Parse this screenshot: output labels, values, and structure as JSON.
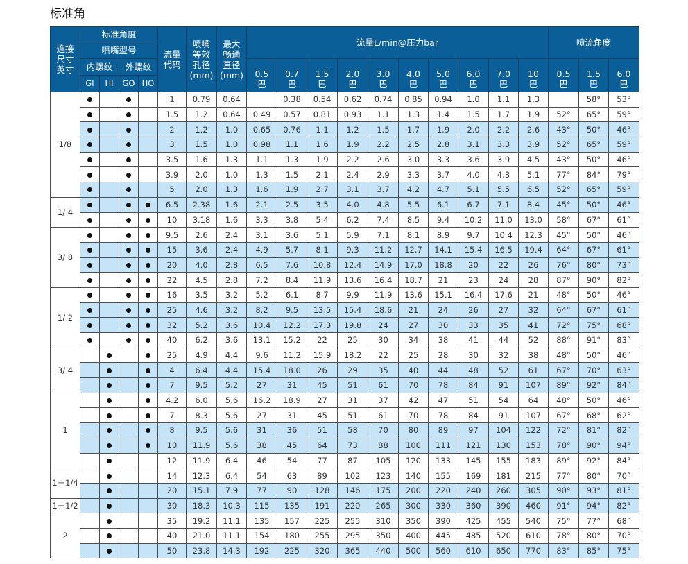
{
  "title": "标准角",
  "header": {
    "connection": [
      "连接",
      "尺寸",
      "英寸"
    ],
    "standard_angle": "标准角度",
    "nozzle_type": "喷嘴型号",
    "female_thread": "内螺纹",
    "male_thread": "外螺纹",
    "types": [
      "GI",
      "HI",
      "GO",
      "HO"
    ],
    "flow_code": [
      "流量",
      "代码"
    ],
    "orifice": [
      "喷嘴",
      "等效",
      "孔径",
      "(mm)"
    ],
    "passage": [
      "最大",
      "畅通",
      "直径",
      "(mm)"
    ],
    "flow_title": "流量L/min@压力bar",
    "flow_pressures": [
      "0.5",
      "0.7",
      "1.5",
      "2.0",
      "3.0",
      "4.0",
      "5.0",
      "6.0",
      "7.0",
      "10"
    ],
    "angle_title": "喷流角度",
    "angle_pressures": [
      "0.5",
      "1.5",
      "6.0"
    ],
    "unit": "巴"
  },
  "colors": {
    "header_bg": "#0b5f98",
    "highlight_row": "#c6e4f8"
  },
  "groups": [
    {
      "size": "1/8",
      "rows": [
        {
          "marks": [
            1,
            0,
            1,
            0
          ],
          "hl": 0,
          "code": "1",
          "orifice": "0.79",
          "passage": "0.64",
          "flows": [
            "",
            "0.38",
            "0.54",
            "0.62",
            "0.74",
            "0.85",
            "0.94",
            "1.0",
            "1.1",
            "1.3"
          ],
          "angles": [
            "",
            "58°",
            "53°"
          ]
        },
        {
          "marks": [
            1,
            0,
            1,
            0
          ],
          "hl": 0,
          "code": "1.5",
          "orifice": "1.2",
          "passage": "0.64",
          "flows": [
            "0.49",
            "0.57",
            "0.81",
            "0.93",
            "1.1",
            "1.3",
            "1.4",
            "1.5",
            "1.7",
            "1.9"
          ],
          "angles": [
            "52°",
            "65°",
            "59°"
          ]
        },
        {
          "marks": [
            1,
            0,
            1,
            0
          ],
          "hl": 1,
          "code": "2",
          "orifice": "1.2",
          "passage": "1.0",
          "flows": [
            "0.65",
            "0.76",
            "1.1",
            "1.2",
            "1.5",
            "1.7",
            "1.9",
            "2.0",
            "2.2",
            "2.6"
          ],
          "angles": [
            "43°",
            "50°",
            "46°"
          ]
        },
        {
          "marks": [
            1,
            0,
            1,
            0
          ],
          "hl": 1,
          "code": "3",
          "orifice": "1.5",
          "passage": "1.0",
          "flows": [
            "0.98",
            "1.1",
            "1.6",
            "1.9",
            "2.2",
            "2.5",
            "2.8",
            "3.1",
            "3.3",
            "3.9"
          ],
          "angles": [
            "52°",
            "65°",
            "59°"
          ]
        },
        {
          "marks": [
            1,
            0,
            1,
            0
          ],
          "hl": 0,
          "code": "3.5",
          "orifice": "1.6",
          "passage": "1.3",
          "flows": [
            "1.1",
            "1.3",
            "1.9",
            "2.2",
            "2.6",
            "3.0",
            "3.3",
            "3.6",
            "3.9",
            "4.5"
          ],
          "angles": [
            "43°",
            "50°",
            "46°"
          ]
        },
        {
          "marks": [
            1,
            0,
            1,
            0
          ],
          "hl": 0,
          "code": "3.9",
          "orifice": "2.0",
          "passage": "1.0",
          "flows": [
            "1.3",
            "1.5",
            "2.1",
            "2.4",
            "2.9",
            "3.3",
            "3.7",
            "4.0",
            "4.3",
            "5.1"
          ],
          "angles": [
            "77°",
            "84°",
            "79°"
          ]
        },
        {
          "marks": [
            1,
            0,
            1,
            0
          ],
          "hl": 1,
          "code": "5",
          "orifice": "2.0",
          "passage": "1.3",
          "flows": [
            "1.6",
            "1.9",
            "2.7",
            "3.1",
            "3.7",
            "4.2",
            "4.7",
            "5.1",
            "5.5",
            "6.5"
          ],
          "angles": [
            "52°",
            "65°",
            "59°"
          ]
        }
      ]
    },
    {
      "size": "1/ 4",
      "rows": [
        {
          "marks": [
            1,
            0,
            1,
            1
          ],
          "hl": 1,
          "code": "6.5",
          "orifice": "2.38",
          "passage": "1.6",
          "flows": [
            "2.1",
            "2.5",
            "3.5",
            "4.0",
            "4.8",
            "5.5",
            "6.1",
            "6.7",
            "7.1",
            "8.4"
          ],
          "angles": [
            "45°",
            "50°",
            "46°"
          ]
        },
        {
          "marks": [
            1,
            0,
            1,
            1
          ],
          "hl": 0,
          "code": "10",
          "orifice": "3.18",
          "passage": "1.6",
          "flows": [
            "3.3",
            "3.8",
            "5.4",
            "6.2",
            "7.4",
            "8.5",
            "9.4",
            "10.2",
            "11.0",
            "13.0"
          ],
          "angles": [
            "58°",
            "67°",
            "61°"
          ]
        }
      ]
    },
    {
      "size": "3/ 8",
      "rows": [
        {
          "marks": [
            1,
            0,
            1,
            1
          ],
          "hl": 0,
          "code": "9.5",
          "orifice": "2.6",
          "passage": "2.4",
          "flows": [
            "3.1",
            "3.6",
            "5.1",
            "5.9",
            "7.1",
            "8.1",
            "8.9",
            "9.7",
            "10.4",
            "12.3"
          ],
          "angles": [
            "45°",
            "50°",
            "46°"
          ]
        },
        {
          "marks": [
            1,
            0,
            1,
            1
          ],
          "hl": 1,
          "code": "15",
          "orifice": "3.6",
          "passage": "2.4",
          "flows": [
            "4.9",
            "5.7",
            "8.1",
            "9.3",
            "11.2",
            "12.7",
            "14.1",
            "15.4",
            "16.5",
            "19.4"
          ],
          "angles": [
            "64°",
            "67°",
            "61°"
          ]
        },
        {
          "marks": [
            1,
            0,
            1,
            1
          ],
          "hl": 1,
          "code": "20",
          "orifice": "4.0",
          "passage": "2.8",
          "flows": [
            "6.5",
            "7.6",
            "10.8",
            "12.4",
            "14.9",
            "17.0",
            "18.8",
            "20",
            "22",
            "26"
          ],
          "angles": [
            "76°",
            "80°",
            "73°"
          ]
        },
        {
          "marks": [
            1,
            0,
            1,
            1
          ],
          "hl": 0,
          "code": "22",
          "orifice": "4.5",
          "passage": "2.8",
          "flows": [
            "7.2",
            "8.4",
            "11.9",
            "13.6",
            "16.4",
            "18.7",
            "21",
            "23",
            "24",
            "28"
          ],
          "angles": [
            "87°",
            "90°",
            "82°"
          ]
        }
      ]
    },
    {
      "size": "1/ 2",
      "rows": [
        {
          "marks": [
            1,
            0,
            1,
            1
          ],
          "hl": 0,
          "code": "16",
          "orifice": "3.5",
          "passage": "3.2",
          "flows": [
            "5.2",
            "6.1",
            "8.7",
            "9.9",
            "11.9",
            "13.6",
            "15.1",
            "16.4",
            "17.6",
            "21"
          ],
          "angles": [
            "48°",
            "50°",
            "46°"
          ]
        },
        {
          "marks": [
            1,
            0,
            1,
            1
          ],
          "hl": 1,
          "code": "25",
          "orifice": "4.6",
          "passage": "3.2",
          "flows": [
            "8.2",
            "9.5",
            "13.5",
            "15.4",
            "18.6",
            "21",
            "24",
            "26",
            "27",
            "32"
          ],
          "angles": [
            "64°",
            "67°",
            "61°"
          ]
        },
        {
          "marks": [
            1,
            0,
            1,
            1
          ],
          "hl": 1,
          "code": "32",
          "orifice": "5.2",
          "passage": "3.6",
          "flows": [
            "10.4",
            "12.2",
            "17.3",
            "19.8",
            "24",
            "27",
            "30",
            "33",
            "35",
            "41"
          ],
          "angles": [
            "72°",
            "75°",
            "68°"
          ]
        },
        {
          "marks": [
            1,
            0,
            1,
            1
          ],
          "hl": 0,
          "code": "40",
          "orifice": "6.2",
          "passage": "3.6",
          "flows": [
            "13.1",
            "15.2",
            "22",
            "25",
            "30",
            "34",
            "38",
            "41",
            "44",
            "52"
          ],
          "angles": [
            "88°",
            "91°",
            "83°"
          ]
        }
      ]
    },
    {
      "size": "3/ 4",
      "rows": [
        {
          "marks": [
            0,
            1,
            0,
            1
          ],
          "hl": 0,
          "code": "25",
          "orifice": "4.9",
          "passage": "4.4",
          "flows": [
            "9.6",
            "11.2",
            "15.9",
            "18.2",
            "22",
            "25",
            "28",
            "30",
            "32",
            "38"
          ],
          "angles": [
            "48°",
            "50°",
            "46°"
          ]
        },
        {
          "marks": [
            0,
            1,
            0,
            1
          ],
          "hl": 1,
          "code": "4",
          "orifice": "6.4",
          "passage": "4.4",
          "flows": [
            "15.4",
            "18.0",
            "26",
            "29",
            "35",
            "40",
            "44",
            "48",
            "52",
            "61"
          ],
          "angles": [
            "67°",
            "70°",
            "63°"
          ]
        },
        {
          "marks": [
            0,
            1,
            0,
            1
          ],
          "hl": 1,
          "code": "7",
          "orifice": "9.5",
          "passage": "5.2",
          "flows": [
            "27",
            "31",
            "45",
            "51",
            "61",
            "70",
            "78",
            "84",
            "91",
            "107"
          ],
          "angles": [
            "89°",
            "92°",
            "84°"
          ]
        }
      ]
    },
    {
      "size": "1",
      "rows": [
        {
          "marks": [
            0,
            1,
            0,
            1
          ],
          "hl": 0,
          "code": "4.2",
          "orifice": "6.0",
          "passage": "5.6",
          "flows": [
            "16.2",
            "18.9",
            "27",
            "31",
            "37",
            "42",
            "47",
            "51",
            "54",
            "64"
          ],
          "angles": [
            "48°",
            "50°",
            "46°"
          ]
        },
        {
          "marks": [
            0,
            1,
            0,
            1
          ],
          "hl": 0,
          "code": "7",
          "orifice": "8.3",
          "passage": "5.6",
          "flows": [
            "27",
            "31",
            "45",
            "51",
            "61",
            "70",
            "78",
            "84",
            "91",
            "107"
          ],
          "angles": [
            "67°",
            "68°",
            "62°"
          ]
        },
        {
          "marks": [
            0,
            1,
            0,
            1
          ],
          "hl": 1,
          "code": "8",
          "orifice": "9.5",
          "passage": "5.6",
          "flows": [
            "31",
            "36",
            "51",
            "58",
            "70",
            "80",
            "89",
            "97",
            "104",
            "122"
          ],
          "angles": [
            "72°",
            "81°",
            "82°"
          ]
        },
        {
          "marks": [
            0,
            1,
            0,
            1
          ],
          "hl": 1,
          "code": "10",
          "orifice": "11.9",
          "passage": "5.6",
          "flows": [
            "38",
            "45",
            "64",
            "73",
            "88",
            "100",
            "111",
            "121",
            "130",
            "153"
          ],
          "angles": [
            "78°",
            "90°",
            "94°"
          ]
        },
        {
          "marks": [
            0,
            1,
            0,
            0
          ],
          "hl": 0,
          "code": "12",
          "orifice": "11.9",
          "passage": "6.4",
          "flows": [
            "46",
            "54",
            "77",
            "87",
            "105",
            "120",
            "133",
            "145",
            "155",
            "183"
          ],
          "angles": [
            "89°",
            "92°",
            "84°"
          ]
        }
      ]
    },
    {
      "size": "1－1/4",
      "rows": [
        {
          "marks": [
            0,
            1,
            0,
            0
          ],
          "hl": 0,
          "code": "14",
          "orifice": "12.3",
          "passage": "6.4",
          "flows": [
            "54",
            "63",
            "89",
            "102",
            "123",
            "140",
            "155",
            "169",
            "181",
            "215"
          ],
          "angles": [
            "77°",
            "80°",
            "70°"
          ]
        },
        {
          "marks": [
            0,
            1,
            0,
            0
          ],
          "hl": 1,
          "code": "20",
          "orifice": "15.1",
          "passage": "7.9",
          "flows": [
            "77",
            "90",
            "128",
            "146",
            "175",
            "200",
            "220",
            "240",
            "260",
            "305"
          ],
          "angles": [
            "90°",
            "93°",
            "81°"
          ]
        }
      ]
    },
    {
      "size": "1－1/2",
      "rows": [
        {
          "marks": [
            0,
            1,
            0,
            0
          ],
          "hl": 1,
          "code": "30",
          "orifice": "18.3",
          "passage": "10.3",
          "flows": [
            "115",
            "135",
            "191",
            "220",
            "265",
            "300",
            "330",
            "360",
            "390",
            "460"
          ],
          "angles": [
            "91°",
            "94°",
            "82°"
          ]
        }
      ]
    },
    {
      "size": "2",
      "rows": [
        {
          "marks": [
            0,
            1,
            0,
            0
          ],
          "hl": 0,
          "code": "35",
          "orifice": "19.2",
          "passage": "11.1",
          "flows": [
            "135",
            "157",
            "225",
            "255",
            "310",
            "350",
            "390",
            "425",
            "455",
            "540"
          ],
          "angles": [
            "75°",
            "77°",
            "68°"
          ]
        },
        {
          "marks": [
            0,
            1,
            0,
            0
          ],
          "hl": 0,
          "code": "40",
          "orifice": "21.0",
          "passage": "11.1",
          "flows": [
            "154",
            "180",
            "255",
            "295",
            "350",
            "400",
            "445",
            "485",
            "520",
            "610"
          ],
          "angles": [
            "78°",
            "80°",
            "70°"
          ]
        },
        {
          "marks": [
            0,
            1,
            0,
            0
          ],
          "hl": 1,
          "code": "50",
          "orifice": "23.8",
          "passage": "14.3",
          "flows": [
            "192",
            "225",
            "320",
            "365",
            "440",
            "500",
            "560",
            "610",
            "650",
            "770"
          ],
          "angles": [
            "83°",
            "85°",
            "75°"
          ]
        }
      ]
    }
  ]
}
